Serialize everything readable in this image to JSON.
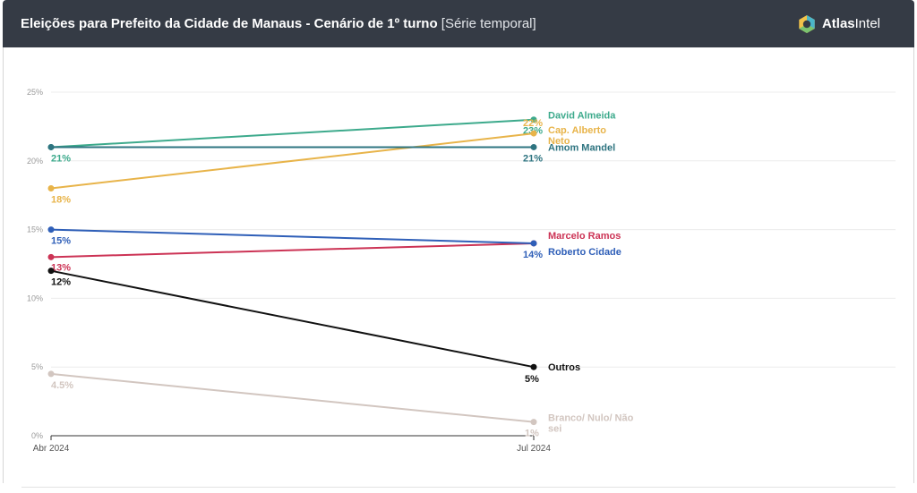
{
  "header": {
    "title": "Eleições para Prefeito da Cidade de Manaus - Cenário de 1º turno",
    "subtitle": "[Série temporal]",
    "brand_bold": "Atlas",
    "brand_rest": "Intel"
  },
  "chart_data": {
    "type": "line",
    "title": "Eleições para Prefeito da Cidade de Manaus - Cenário de 1º turno",
    "subtitle": "[Série temporal]",
    "x": [
      "Abr 2024",
      "Jul 2024"
    ],
    "ylim": [
      0,
      25
    ],
    "yticks": [
      {
        "value": 0,
        "label": "0%"
      },
      {
        "value": 5,
        "label": "5%"
      },
      {
        "value": 10,
        "label": "10%"
      },
      {
        "value": 15,
        "label": "15%"
      },
      {
        "value": 20,
        "label": "20%"
      },
      {
        "value": 25,
        "label": "25%"
      }
    ],
    "grid": true,
    "legend": "right end labels",
    "series": [
      {
        "name": "David Almeida",
        "color": "#3daa8c",
        "values": [
          21,
          23
        ],
        "labels": [
          "21%",
          "23%"
        ]
      },
      {
        "name": "Cap. Alberto Neto",
        "color": "#e8b44a",
        "values": [
          18,
          22
        ],
        "labels": [
          "18%",
          "22%"
        ]
      },
      {
        "name": "Amom Mandel",
        "color": "#2e7480",
        "values": [
          21,
          21
        ],
        "labels": [
          "",
          "21%"
        ]
      },
      {
        "name": "Marcelo Ramos",
        "color": "#cc3355",
        "values": [
          13,
          14
        ],
        "labels": [
          "13%",
          ""
        ]
      },
      {
        "name": "Roberto Cidade",
        "color": "#2f5fb8",
        "values": [
          15,
          14
        ],
        "labels": [
          "15%",
          "14%"
        ]
      },
      {
        "name": "Outros",
        "color": "#111111",
        "values": [
          12,
          5
        ],
        "labels": [
          "12%",
          "5%"
        ]
      },
      {
        "name": "Branco/ Nulo/ Não sei",
        "color": "#d2c6c0",
        "values": [
          4.5,
          1
        ],
        "labels": [
          "4.5%",
          "1%"
        ]
      }
    ]
  }
}
